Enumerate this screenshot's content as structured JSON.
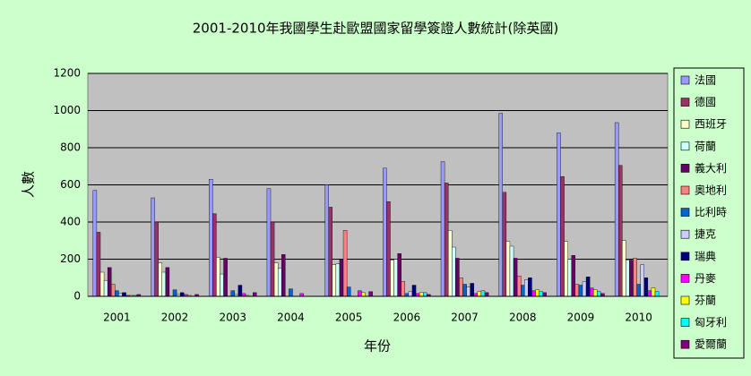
{
  "chart_data": {
    "type": "bar",
    "title": "2001-2010年我國學生赴歐盟國家留學簽證人數統計(除英國)",
    "x_label": "年份",
    "y_label": "人數",
    "categories": [
      "2001",
      "2002",
      "2003",
      "2004",
      "2005",
      "2006",
      "2007",
      "2008",
      "2009",
      "2010"
    ],
    "series": [
      {
        "name": "法國",
        "color": "#9999ff",
        "values": [
          570,
          530,
          630,
          580,
          600,
          690,
          725,
          985,
          880,
          935
        ]
      },
      {
        "name": "德國",
        "color": "#993366",
        "values": [
          345,
          400,
          445,
          400,
          480,
          510,
          610,
          560,
          645,
          705
        ]
      },
      {
        "name": "西班牙",
        "color": "#ffffcc",
        "values": [
          130,
          180,
          210,
          180,
          170,
          195,
          355,
          295,
          295,
          300
        ]
      },
      {
        "name": "荷蘭",
        "color": "#ccffff",
        "values": [
          85,
          130,
          120,
          150,
          175,
          200,
          265,
          270,
          200,
          195
        ]
      },
      {
        "name": "義大利",
        "color": "#660066",
        "values": [
          155,
          155,
          205,
          225,
          200,
          230,
          205,
          205,
          220,
          195
        ]
      },
      {
        "name": "奧地利",
        "color": "#ff8080",
        "values": [
          65,
          0,
          0,
          0,
          355,
          80,
          100,
          110,
          65,
          205
        ]
      },
      {
        "name": "比利時",
        "color": "#0066cc",
        "values": [
          30,
          35,
          30,
          40,
          50,
          15,
          65,
          60,
          60,
          65
        ]
      },
      {
        "name": "捷克",
        "color": "#ccccff",
        "values": [
          15,
          10,
          10,
          0,
          0,
          25,
          50,
          90,
          80,
          170
        ]
      },
      {
        "name": "瑞典",
        "color": "#000080",
        "values": [
          20,
          20,
          60,
          0,
          0,
          60,
          70,
          100,
          105,
          100
        ]
      },
      {
        "name": "丹麥",
        "color": "#ff00ff",
        "values": [
          5,
          10,
          15,
          15,
          30,
          15,
          15,
          30,
          45,
          30
        ]
      },
      {
        "name": "芬蘭",
        "color": "#ffff00",
        "values": [
          5,
          5,
          5,
          0,
          20,
          20,
          25,
          35,
          35,
          45
        ]
      },
      {
        "name": "匈牙利",
        "color": "#00ffff",
        "values": [
          5,
          0,
          0,
          0,
          0,
          20,
          30,
          25,
          25,
          25
        ]
      },
      {
        "name": "愛爾蘭",
        "color": "#800080",
        "values": [
          10,
          10,
          20,
          0,
          25,
          10,
          20,
          20,
          15,
          0
        ]
      }
    ],
    "ylim": [
      0,
      1200
    ],
    "yticks": [
      0,
      200,
      400,
      600,
      800,
      1000,
      1200
    ],
    "grid": true
  }
}
